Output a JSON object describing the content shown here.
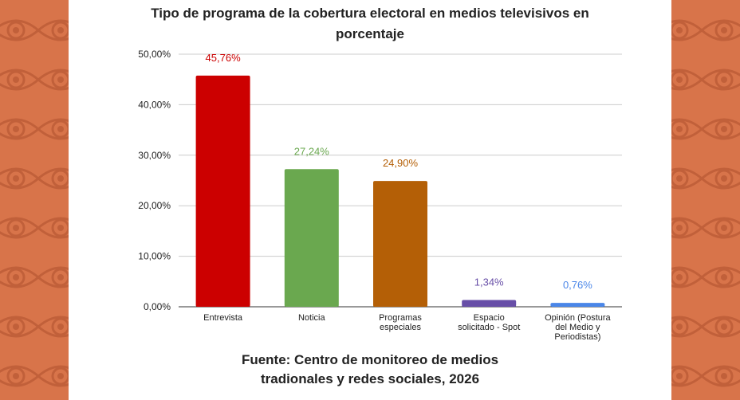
{
  "chart_data": {
    "type": "bar",
    "title_line1": "Tipo de programa de la cobertura electoral en medios televisivos en",
    "title_line2": "porcentaje",
    "categories": [
      [
        "Entrevista"
      ],
      [
        "Noticia"
      ],
      [
        "Programas",
        "especiales"
      ],
      [
        "Espacio",
        "solicitado - Spot"
      ],
      [
        "Opinión (Postura",
        "del Medio y",
        "Periodistas)"
      ]
    ],
    "values": [
      45.76,
      27.24,
      24.9,
      1.34,
      0.76
    ],
    "value_labels": [
      "45,76%",
      "27,24%",
      "24,90%",
      "1,34%",
      "0,76%"
    ],
    "colors": [
      "#cc0000",
      "#6aa84f",
      "#b45f06",
      "#674ea7",
      "#4a86e8"
    ],
    "ylim": [
      0,
      50
    ],
    "yticks": [
      0,
      10,
      20,
      30,
      40,
      50
    ],
    "ytick_labels": [
      "0,00%",
      "10,00%",
      "20,00%",
      "30,00%",
      "40,00%",
      "50,00%"
    ],
    "grid": true,
    "legend": "none"
  },
  "source": {
    "line1": "Fuente: Centro de monitoreo de medios",
    "line2": "tradionales y redes sociales, 2026"
  },
  "colors": {
    "background": "#d8744a",
    "pattern": "#c1603a",
    "panel": "#ffffff"
  },
  "decoration": {
    "pattern_icon": "eye-icon"
  }
}
